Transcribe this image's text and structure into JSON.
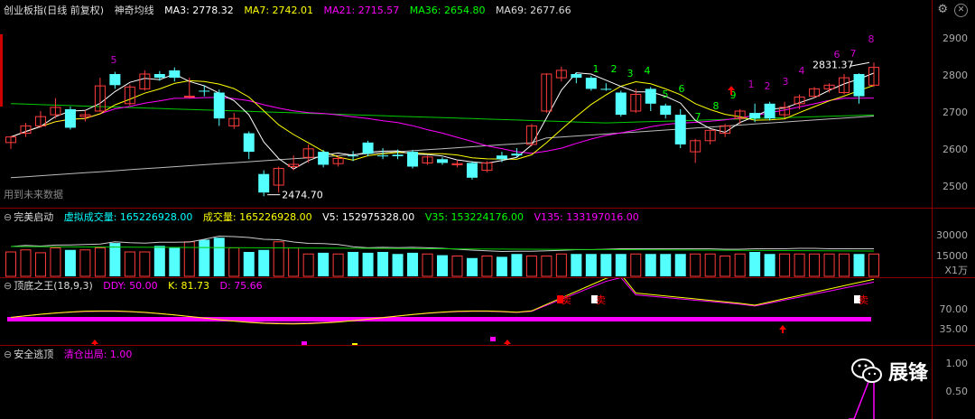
{
  "main": {
    "title": "创业板指(日线 前复权)",
    "indicator": "神奇均线",
    "ma": [
      {
        "label": "MA3: 2778.32",
        "color": "#ffffff"
      },
      {
        "label": "MA7: 2742.01",
        "color": "#ffff00"
      },
      {
        "label": "MA21: 2715.57",
        "color": "#ff00ff"
      },
      {
        "label": "MA36: 2654.80",
        "color": "#00ff00"
      },
      {
        "label": "MA69: 2677.66",
        "color": "#dddddd"
      }
    ],
    "yticks": [
      "2900",
      "2800",
      "2700",
      "2600",
      "2500"
    ],
    "high_label": "2831.37",
    "low_label": "2474.70",
    "future_label": "用到未来数据",
    "count_labels": [
      "5",
      "1",
      "2",
      "3",
      "4",
      "5",
      "6",
      "7",
      "8",
      "9",
      "1",
      "2",
      "3",
      "4",
      "6",
      "7",
      "8"
    ]
  },
  "volume": {
    "title": "完美启动",
    "items": [
      {
        "label": "虚拟成交量: 165226928.00",
        "color": "#00ffff"
      },
      {
        "label": "成交量: 165226928.00",
        "color": "#ffff00"
      },
      {
        "label": "V5: 152975328.00",
        "color": "#ffffff"
      },
      {
        "label": "V35: 153224176.00",
        "color": "#00ff00"
      },
      {
        "label": "V135: 133197016.00",
        "color": "#ff00ff"
      }
    ],
    "yticks": [
      "30000",
      "15000"
    ],
    "unit": "X1万"
  },
  "kdj": {
    "title": "顶底之王(18,9,3)",
    "items": [
      {
        "label": "DDY: 50.00",
        "color": "#ff00ff"
      },
      {
        "label": "K: 81.73",
        "color": "#ffff00"
      },
      {
        "label": "D: 75.66",
        "color": "#ff00ff"
      }
    ],
    "yticks": [
      "70.00",
      "35.00"
    ],
    "sell_label": "卖"
  },
  "escape": {
    "title": "安全逃顶",
    "items": [
      {
        "label": "清仓出局: 1.00",
        "color": "#ff00ff"
      }
    ],
    "yticks": [
      "1.00",
      "0.50"
    ]
  },
  "brand": {
    "name": "展锋"
  },
  "chart_data": {
    "type": "candlestick",
    "candles": [
      [
        2615,
        2630,
        2598,
        2633,
        "r"
      ],
      [
        2640,
        2660,
        2630,
        2668,
        "r"
      ],
      [
        2660,
        2685,
        2655,
        2700,
        "r"
      ],
      [
        2690,
        2710,
        2680,
        2735,
        "r"
      ],
      [
        2655,
        2705,
        2650,
        2712,
        "c"
      ],
      [
        2685,
        2690,
        2672,
        2702,
        "r"
      ],
      [
        2700,
        2768,
        2698,
        2790,
        "r"
      ],
      [
        2770,
        2800,
        2760,
        2806,
        "c"
      ],
      [
        2720,
        2765,
        2715,
        2772,
        "r"
      ],
      [
        2760,
        2800,
        2755,
        2810,
        "r"
      ],
      [
        2800,
        2790,
        2782,
        2808,
        "c"
      ],
      [
        2790,
        2810,
        2780,
        2818,
        "c"
      ],
      [
        2740,
        2740,
        2735,
        2790,
        "r"
      ],
      [
        2755,
        2755,
        2740,
        2770,
        "c"
      ],
      [
        2680,
        2750,
        2660,
        2758,
        "c"
      ],
      [
        2660,
        2680,
        2652,
        2695,
        "r"
      ],
      [
        2590,
        2640,
        2570,
        2645,
        "c"
      ],
      [
        2480,
        2530,
        2470,
        2540,
        "c"
      ],
      [
        2500,
        2545,
        2480,
        2550,
        "r"
      ],
      [
        2550,
        2556,
        2540,
        2580,
        "r"
      ],
      [
        2575,
        2598,
        2560,
        2610,
        "r"
      ],
      [
        2555,
        2590,
        2548,
        2595,
        "c"
      ],
      [
        2558,
        2572,
        2550,
        2580,
        "r"
      ],
      [
        2580,
        2580,
        2565,
        2592,
        "c"
      ],
      [
        2585,
        2615,
        2578,
        2620,
        "c"
      ],
      [
        2580,
        2580,
        2570,
        2600,
        "c"
      ],
      [
        2578,
        2582,
        2570,
        2596,
        "c"
      ],
      [
        2550,
        2590,
        2545,
        2595,
        "c"
      ],
      [
        2560,
        2576,
        2555,
        2580,
        "r"
      ],
      [
        2560,
        2570,
        2555,
        2575,
        "c"
      ],
      [
        2555,
        2558,
        2548,
        2568,
        "r"
      ],
      [
        2520,
        2560,
        2515,
        2565,
        "c"
      ],
      [
        2540,
        2560,
        2535,
        2565,
        "r"
      ],
      [
        2570,
        2580,
        2562,
        2590,
        "c"
      ],
      [
        2580,
        2585,
        2575,
        2600,
        "c"
      ],
      [
        2610,
        2660,
        2605,
        2665,
        "r"
      ],
      [
        2700,
        2800,
        2695,
        2802,
        "r"
      ],
      [
        2790,
        2810,
        2780,
        2820,
        "r"
      ],
      [
        2790,
        2800,
        2775,
        2805,
        "c"
      ],
      [
        2760,
        2790,
        2755,
        2795,
        "c"
      ],
      [
        2760,
        2760,
        2755,
        2775,
        "c"
      ],
      [
        2690,
        2750,
        2685,
        2755,
        "c"
      ],
      [
        2700,
        2745,
        2695,
        2760,
        "r"
      ],
      [
        2720,
        2760,
        2700,
        2765,
        "c"
      ],
      [
        2690,
        2715,
        2680,
        2720,
        "c"
      ],
      [
        2610,
        2690,
        2600,
        2705,
        "c"
      ],
      [
        2590,
        2620,
        2560,
        2625,
        "r"
      ],
      [
        2620,
        2648,
        2610,
        2650,
        "r"
      ],
      [
        2640,
        2660,
        2630,
        2665,
        "r"
      ],
      [
        2680,
        2700,
        2665,
        2705,
        "r"
      ],
      [
        2680,
        2695,
        2670,
        2720,
        "c"
      ],
      [
        2680,
        2720,
        2675,
        2725,
        "c"
      ],
      [
        2690,
        2710,
        2680,
        2725,
        "r"
      ],
      [
        2720,
        2738,
        2705,
        2745,
        "r"
      ],
      [
        2740,
        2760,
        2735,
        2765,
        "r"
      ],
      [
        2760,
        2770,
        2750,
        2775,
        "r"
      ],
      [
        2750,
        2790,
        2745,
        2800,
        "r"
      ],
      [
        2740,
        2800,
        2720,
        2802,
        "c"
      ],
      [
        2770,
        2818,
        2765,
        2831,
        "r"
      ]
    ],
    "volume_pct": [
      0.6,
      0.65,
      0.58,
      0.7,
      0.65,
      0.65,
      0.7,
      0.82,
      0.6,
      0.6,
      0.75,
      0.7,
      0.85,
      0.9,
      0.95,
      0.7,
      0.6,
      0.65,
      0.85,
      0.7,
      0.55,
      0.58,
      0.55,
      0.6,
      0.58,
      0.6,
      0.55,
      0.58,
      0.55,
      0.52,
      0.5,
      0.45,
      0.5,
      0.48,
      0.55,
      0.5,
      0.5,
      0.55,
      0.55,
      0.55,
      0.55,
      0.55,
      0.55,
      0.55,
      0.55,
      0.55,
      0.55,
      0.55,
      0.5,
      0.55,
      0.6,
      0.55,
      0.55,
      0.55,
      0.55,
      0.55,
      0.55,
      0.55,
      0.55
    ],
    "ylim": [
      2450,
      2950
    ]
  }
}
